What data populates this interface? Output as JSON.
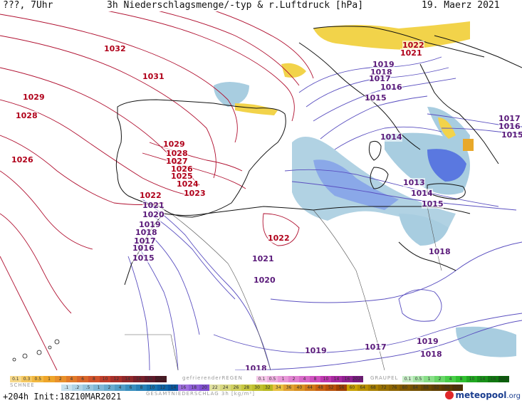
{
  "header": {
    "left": "???, 7Uhr",
    "title": "3h Niederschlagsmenge/-typ & r.Luftdruck [hPa]",
    "date": "19. Maerz 2021"
  },
  "isobar_labels": [
    {
      "text": "1032",
      "color": "#b0001a"
    },
    {
      "text": "1031",
      "color": "#b0001a"
    },
    {
      "text": "1029",
      "color": "#b0001a"
    },
    {
      "text": "1028",
      "color": "#b0001a"
    },
    {
      "text": "1026",
      "color": "#b0001a"
    },
    {
      "text": "1029",
      "color": "#b0001a"
    },
    {
      "text": "1028",
      "color": "#b0001a"
    },
    {
      "text": "1027",
      "color": "#b0001a"
    },
    {
      "text": "1026",
      "color": "#b0001a"
    },
    {
      "text": "1025",
      "color": "#b0001a"
    },
    {
      "text": "1024",
      "color": "#b0001a"
    },
    {
      "text": "1023",
      "color": "#b0001a"
    },
    {
      "text": "1022",
      "color": "#b0001a"
    },
    {
      "text": "1021",
      "color": "#5a1a7a"
    },
    {
      "text": "1020",
      "color": "#5a1a7a"
    },
    {
      "text": "1019",
      "color": "#5a1a7a"
    },
    {
      "text": "1018",
      "color": "#5a1a7a"
    },
    {
      "text": "1017",
      "color": "#5a1a7a"
    },
    {
      "text": "1016",
      "color": "#5a1a7a"
    },
    {
      "text": "1015",
      "color": "#5a1a7a"
    },
    {
      "text": "1022",
      "color": "#b0001a"
    },
    {
      "text": "1021",
      "color": "#5a1a7a"
    },
    {
      "text": "1020",
      "color": "#5a1a7a"
    },
    {
      "text": "1019",
      "color": "#5a1a7a"
    },
    {
      "text": "1018",
      "color": "#5a1a7a"
    },
    {
      "text": "1017",
      "color": "#5a1a7a"
    },
    {
      "text": "1019",
      "color": "#5a1a7a"
    },
    {
      "text": "1018",
      "color": "#5a1a7a"
    },
    {
      "text": "1022",
      "color": "#b0001a"
    },
    {
      "text": "1021",
      "color": "#b0001a"
    },
    {
      "text": "1019",
      "color": "#5a1a7a"
    },
    {
      "text": "1018",
      "color": "#5a1a7a"
    },
    {
      "text": "1017",
      "color": "#5a1a7a"
    },
    {
      "text": "1016",
      "color": "#5a1a7a"
    },
    {
      "text": "1015",
      "color": "#5a1a7a"
    },
    {
      "text": "1014",
      "color": "#5a1a7a"
    },
    {
      "text": "1013",
      "color": "#5a1a7a"
    },
    {
      "text": "1014",
      "color": "#5a1a7a"
    },
    {
      "text": "1015",
      "color": "#5a1a7a"
    },
    {
      "text": "1018",
      "color": "#5a1a7a"
    },
    {
      "text": "1017",
      "color": "#5a1a7a"
    },
    {
      "text": "1016",
      "color": "#5a1a7a"
    },
    {
      "text": "1015",
      "color": "#5a1a7a"
    }
  ],
  "legend": {
    "rain_ticks": [
      "0.1",
      "0.3",
      "0.5",
      "1",
      "2",
      "4",
      "6",
      "8",
      "10",
      "12",
      "14",
      "16",
      "18",
      "2025+"
    ],
    "snow_label": "SCHNEE",
    "snow_ticks": [
      ".1",
      ".2",
      ".5",
      "1",
      "2",
      "4",
      "6",
      "8",
      "10",
      "12",
      "14"
    ],
    "freezing_label": "gefrierenderREGEN",
    "freezing_ticks": [
      "0.1",
      "0.5",
      "1",
      "2",
      "4",
      "8",
      "10",
      "14",
      "16",
      "2025+"
    ],
    "graupel_label": "GRAUPEL",
    "graupel_ticks": [
      "0.1",
      "0.5",
      "1",
      "2",
      "4",
      "8",
      "10",
      "14",
      "16",
      "2025+"
    ],
    "total_label": "GESAMTNIEDERSCHLAG 3h [kg/m²]",
    "total_ticks": [
      "16",
      "18",
      "20",
      "22",
      "24",
      "26",
      "28",
      "30",
      "32",
      "34",
      "36",
      "40",
      "44",
      "48",
      "52",
      "56",
      "60",
      "64",
      "68",
      "72",
      "76",
      "80",
      "84",
      "88",
      "92",
      "96",
      "100"
    ]
  },
  "footer": {
    "run": "+204h Init:18Z10MAR2021",
    "brand": "meteopool",
    "brand_suffix": ".org"
  },
  "colors": {
    "sea": "#ffffff",
    "high_isobar": "#b01030",
    "low_isobar": "#5a4fc0",
    "rain_light": "#a8cde0",
    "rain_mid": "#8aa8e8",
    "rain_heavy": "#5a78e0",
    "snow": "#f2d34a",
    "coast": "#111111"
  }
}
